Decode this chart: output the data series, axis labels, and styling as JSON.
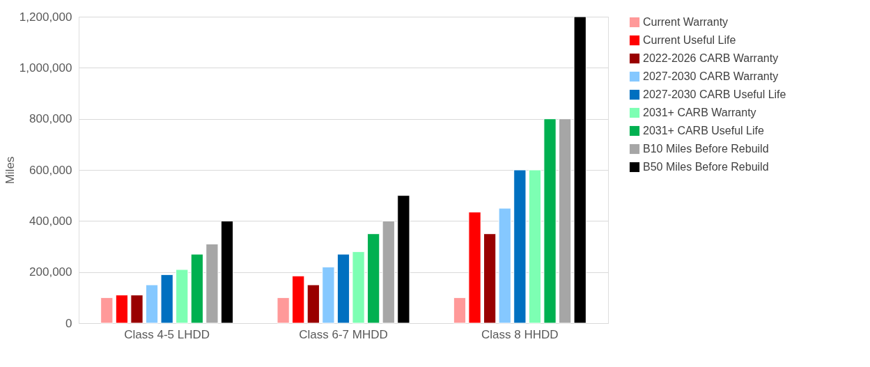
{
  "chart_data": {
    "type": "bar",
    "ylabel": "Miles",
    "categories": [
      "Class 4-5 LHDD",
      "Class 6-7 MHDD",
      "Class 8 HHDD"
    ],
    "series": [
      {
        "name": "Current Warranty",
        "color": "#ff9999",
        "values": [
          100000,
          100000,
          100000
        ]
      },
      {
        "name": "Current Useful Life",
        "color": "#ff0000",
        "values": [
          110000,
          185000,
          435000
        ]
      },
      {
        "name": "2022-2026 CARB Warranty",
        "color": "#990000",
        "values": [
          110000,
          150000,
          350000
        ]
      },
      {
        "name": "2027-2030 CARB Warranty",
        "color": "#85c8ff",
        "values": [
          150000,
          220000,
          450000
        ]
      },
      {
        "name": "2027-2030 CARB Useful Life",
        "color": "#0070c0",
        "values": [
          190000,
          270000,
          600000
        ]
      },
      {
        "name": "2031+ CARB Warranty",
        "color": "#7dffb3",
        "values": [
          210000,
          280000,
          600000
        ]
      },
      {
        "name": "2031+ CARB Useful Life",
        "color": "#00b050",
        "values": [
          270000,
          350000,
          800000
        ]
      },
      {
        "name": "B10 Miles Before Rebuild",
        "color": "#a6a6a6",
        "values": [
          310000,
          400000,
          800000
        ]
      },
      {
        "name": "B50 Miles Before Rebuild",
        "color": "#000000",
        "values": [
          400000,
          500000,
          1200000
        ]
      }
    ],
    "ylim": [
      0,
      1200000
    ],
    "yticks": [
      0,
      {
        "value": 200000,
        "label": "200,000"
      },
      {
        "value": 400000,
        "label": "400,000"
      },
      {
        "value": 600000,
        "label": "600,000"
      },
      {
        "value": 800000,
        "label": "800,000"
      },
      {
        "value": 1000000,
        "label": "1,000,000"
      },
      {
        "value": 1200000,
        "label": "1,200,000"
      }
    ],
    "grid": "y",
    "legend": "right"
  }
}
